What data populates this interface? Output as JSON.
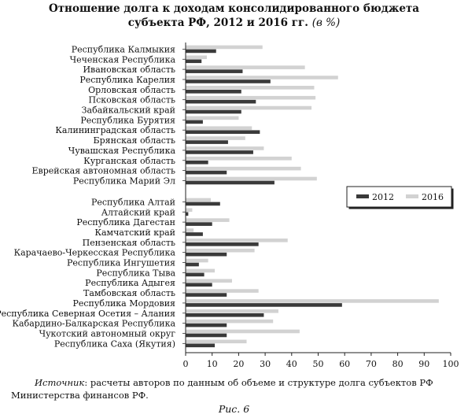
{
  "title": {
    "line1": "Отношение долга к доходам консолидированного бюджета",
    "line2": "субъекта РФ, 2012 и 2016 гг.",
    "units": "(в %)"
  },
  "source": {
    "label": "Источник",
    "text": ": расчеты авторов по данным об объеме и структуре долга субъектов РФ Министерства финансов РФ."
  },
  "caption": "Рис. 6",
  "chart_data": {
    "type": "bar",
    "orientation": "horizontal",
    "xlim": [
      0,
      100
    ],
    "xticks": [
      0,
      10,
      20,
      30,
      40,
      50,
      60,
      70,
      80,
      90,
      100
    ],
    "legend_placement": "right-middle",
    "groups": [
      {
        "categories": [
          "Республика Калмыкия",
          "Чеченская Республика",
          "Ивановская область",
          "Республика Карелия",
          "Орловская область",
          "Псковская область",
          "Забайкальский край",
          "Республика Бурятия",
          "Калининградская область",
          "Брянская область",
          "Чувашская Республика",
          "Курганская область",
          "Еврейская автономная область",
          "Республика Марий Эл"
        ],
        "series": [
          {
            "name": "2012",
            "color": "#3a3a3a",
            "values": [
              11.5,
              6,
              21.5,
              32,
              21,
              26.5,
              21,
              6.5,
              28,
              16,
              25.5,
              8.5,
              15.5,
              33.5
            ]
          },
          {
            "name": "2016",
            "color": "#d2d2d2",
            "values": [
              29,
              8,
              45,
              57.5,
              48.5,
              49,
              47.5,
              20,
              25,
              22.5,
              29.5,
              40,
              43.5,
              49.5
            ]
          }
        ]
      },
      {
        "categories": [
          "Республика Алтай",
          "Алтайский край",
          "Республика Дагестан",
          "Камчатский край",
          "Пензенская область",
          "Карачаево-Черкесская Республика",
          "Республика Ингушетия",
          "Республика Тыва",
          "Республика Адыгея",
          "Тамбовская область",
          "Республика Мордовия",
          "Республика Северная Осетия – Алания",
          "Кабардино-Балкарская Республика",
          "Чукотский автономный округ",
          "Республика Саха (Якутия)"
        ],
        "series": [
          {
            "name": "2012",
            "color": "#3a3a3a",
            "values": [
              13,
              1,
              10,
              6.5,
              27.5,
              15.5,
              5,
              7,
              10,
              15.5,
              59,
              29.5,
              15.5,
              15.5,
              11
            ]
          },
          {
            "name": "2016",
            "color": "#d2d2d2",
            "values": [
              9.5,
              2.5,
              16.5,
              3,
              38.5,
              26,
              8.5,
              11,
              17.5,
              27.5,
              95.5,
              35,
              33,
              43,
              23
            ]
          }
        ]
      }
    ]
  }
}
